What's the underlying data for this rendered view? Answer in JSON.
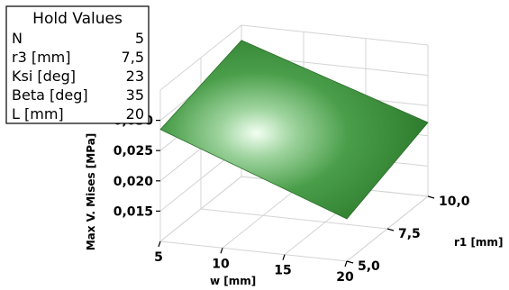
{
  "hold_values": {
    "title": "Hold Values",
    "rows": [
      {
        "name": "N",
        "value": "5"
      },
      {
        "name": "r3 [mm]",
        "value": "7,5"
      },
      {
        "name": "Ksi [deg]",
        "value": "23"
      },
      {
        "name": "Beta [deg]",
        "value": "35"
      },
      {
        "name": "L [mm]",
        "value": "20"
      }
    ]
  },
  "chart_data": {
    "type": "surface",
    "title": "",
    "zlabel": "Max V. Mises [MPa]",
    "xlabel": "w [mm]",
    "ylabel": "r1 [mm]",
    "x_ticks": [
      "5",
      "10",
      "15",
      "20"
    ],
    "y_ticks": [
      "5,0",
      "7,5",
      "10,0"
    ],
    "z_ticks": [
      "0,015",
      "0,020",
      "0,025",
      "0,030"
    ],
    "xlim": [
      5,
      20
    ],
    "ylim": [
      5,
      10
    ],
    "zlim": [
      0.01,
      0.035
    ],
    "surface": {
      "corners": [
        {
          "w": 5,
          "r1": 10,
          "stress": 0.0325
        },
        {
          "w": 20,
          "r1": 10,
          "stress": 0.0222
        },
        {
          "w": 5,
          "r1": 5,
          "stress": 0.0285
        },
        {
          "w": 20,
          "r1": 5,
          "stress": 0.017
        }
      ],
      "color": "#3a8f3a",
      "highlight": "#f2fff2"
    },
    "grid": true
  }
}
